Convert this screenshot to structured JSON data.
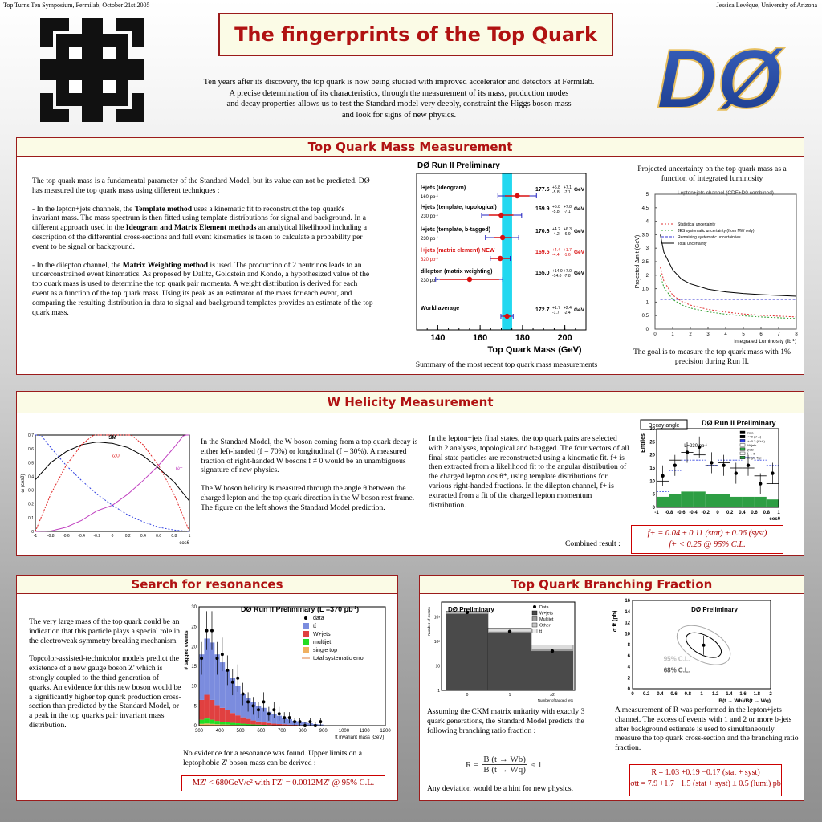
{
  "header": {
    "conference": "Top Turns Ten Symposium, Fermilab, October 21st 2005",
    "author": "Jessica Levêque, University of Arizona",
    "title": "The fingerprints of the Top Quark",
    "intro": [
      "Ten years after its discovery, the top quark is now being studied with improved accelerator and detectors at Fermilab.",
      "A precise determination of its characteristics, through the measurement of its mass, production modes",
      "and decay properties allows us to test the Standard model very deeply, constraint the Higgs boson mass",
      "and look for signs of new physics."
    ],
    "left_logo": "fermilab-logo",
    "right_logo": "d0-logo",
    "right_logo_text": "DØ"
  },
  "mass": {
    "title": "Top Quark Mass Measurement",
    "intro": "The top quark mass is a fundamental parameter of the Standard Model, but its value can not be predicted.  DØ has measured the top quark mass using different techniques :",
    "p2_a": "- In the lepton+jets channels, the ",
    "p2_b1": "Template method",
    "p2_c": " uses a kinematic fit to reconstruct the top quark's invariant mass. The mass spectrum is then fitted using template distributions for signal and background. In a different approach used in the ",
    "p2_b2": "Ideogram and Matrix Element methods",
    "p2_d": " an analytical likelihood including a description of the differential cross-sections and full event kinematics is taken to calculate a probability per event to be signal or background.",
    "p3_a": "- In the dilepton channel, the ",
    "p3_b": "Matrix Weighting method",
    "p3_c": " is used. The production of 2 neutrinos leads to an underconstrained event kinematics. As proposed by Dalitz, Goldstein and Kondo, a hypothesized value of the top quark mass is used to determine the top quark pair momenta. A weight distribution is derived for each event as a function of the top quark mass. Using its peak as an estimator of the mass for each event, and comparing the resulting distribution in data to signal and background templates provides an estimate of the top quark mass.",
    "summary_caption": "Summary of the most recent top quark mass measurements",
    "proj_caption": "Projected uncertainty on the top quark mass as a function of integrated luminosity",
    "goal": "The goal is to measure the top quark mass with 1% precision during Run II."
  },
  "chart_mass": {
    "type": "scatter",
    "title": "DØ Run II Preliminary",
    "xlabel": "Top Quark Mass (GeV)",
    "xlim": [
      130,
      210
    ],
    "ticks": [
      "140",
      "160",
      "180",
      "200"
    ],
    "band": [
      170.3,
      175.1
    ],
    "entries": [
      {
        "label": "l+jets (ideogram)",
        "lumi": "160 pb",
        "val": "177.5",
        "stat": "+5.8 -5.8",
        "syst": "+7.1 -7.1",
        "unit": "GeV",
        "x": 177.5,
        "lo": 168.4,
        "hi": 186.6,
        "slo": 171.7,
        "shi": 183.3,
        "color": "#d81010",
        "tcolor": "#000000"
      },
      {
        "label": "l+jets (template, topological)",
        "lumi": "230 pb",
        "val": "169.9",
        "stat": "+5.8 -5.8",
        "syst": "+7.8 -7.1",
        "unit": "GeV",
        "x": 169.9,
        "lo": 160.7,
        "hi": 179.6,
        "slo": 164.1,
        "shi": 175.7,
        "color": "#d81010",
        "tcolor": "#000000"
      },
      {
        "label": "l+jets (template, b-tagged)",
        "lumi": "230 pb",
        "val": "170.6",
        "stat": "+4.2 -4.2",
        "syst": "+6.3 -6.9",
        "unit": "GeV",
        "x": 170.6,
        "lo": 162.5,
        "hi": 178.2,
        "slo": 166.4,
        "shi": 174.8,
        "color": "#d81010",
        "tcolor": "#000000"
      },
      {
        "label": "l+jets (matrix element) NEW",
        "lumi": "320 pb",
        "val": "169.5",
        "stat": "+4.4 -4.4",
        "syst": "+1.7 -1.6",
        "unit": "GeV",
        "x": 169.5,
        "lo": 164.8,
        "hi": 174.2,
        "slo": 165.1,
        "shi": 173.9,
        "color": "#d81010",
        "tcolor": "#d81010"
      },
      {
        "label": "dilepton (matrix weighting)",
        "lumi": "230 pb",
        "val": "155.0",
        "stat": "+14.0 -14.0",
        "syst": "+7.0 -7.8",
        "unit": "GeV",
        "x": 155.0,
        "lo": 139.0,
        "hi": 170.7,
        "slo": 141.0,
        "shi": 169.0,
        "color": "#d81010",
        "tcolor": "#000000"
      },
      {
        "label": "World average",
        "lumi": "",
        "val": "172.7",
        "stat": "+1.7 -1.7",
        "syst": "+2.4 -2.4",
        "unit": "GeV",
        "x": 172.7,
        "lo": 169.8,
        "hi": 175.6,
        "slo": 171.0,
        "shi": 174.4,
        "color": "#d81010",
        "tcolor": "#000000"
      }
    ]
  },
  "chart_proj": {
    "type": "line",
    "title": "Lepton+jets channel (CDF+D0 combined)",
    "xlabel": "Integrated Luminosity (fb",
    "ylabel": "Projected Δm t (GeV)",
    "xlim": [
      0,
      8
    ],
    "ylim": [
      0,
      5
    ],
    "xticks": [
      "0",
      "1",
      "2",
      "3",
      "4",
      "5",
      "6",
      "7",
      "8"
    ],
    "yticks": [
      "0",
      "0.5",
      "1",
      "1.5",
      "2",
      "2.5",
      "3",
      "3.5",
      "4",
      "4.5",
      "5"
    ],
    "legend": [
      "Statistical uncertainty",
      "JES systematic uncertainty (from MW only)",
      "Remaining systematic uncertainties",
      "Total uncertainty"
    ],
    "x": [
      0.3,
      0.5,
      1,
      1.5,
      2,
      3,
      4,
      5,
      6,
      7,
      8
    ],
    "series": [
      {
        "name": "Statistical uncertainty",
        "color": "#e03030",
        "dash": "2,2",
        "values": [
          2.3,
          1.78,
          1.26,
          1.03,
          0.89,
          0.73,
          0.63,
          0.56,
          0.51,
          0.48,
          0.45
        ]
      },
      {
        "name": "JES systematic uncertainty (from MW only)",
        "color": "#30a030",
        "dash": "2,2",
        "values": [
          2.0,
          1.55,
          1.1,
          0.9,
          0.78,
          0.64,
          0.55,
          0.49,
          0.45,
          0.42,
          0.39
        ]
      },
      {
        "name": "Remaining systematic uncertainties",
        "color": "#3030d0",
        "dash": "3,2",
        "values": [
          1.1,
          1.1,
          1.1,
          1.1,
          1.1,
          1.1,
          1.1,
          1.1,
          1.1,
          1.1,
          1.1
        ]
      },
      {
        "name": "Total uncertainty",
        "color": "#000000",
        "dash": "",
        "values": [
          3.5,
          2.85,
          2.2,
          1.85,
          1.68,
          1.48,
          1.38,
          1.32,
          1.28,
          1.25,
          1.22
        ]
      }
    ]
  },
  "whel": {
    "title": "W Helicity Measurement",
    "text1_a": "In the Standard Model, the W boson coming from a top quark decay is either left-handed (f",
    "text1_b": " = 70%) or longitudinal (f",
    "text1_c": " = 30%). A measured fraction of right-handed W bosons f",
    "text1_d": " ≠ 0 would be an unambiguous signature of new physics.",
    "text2": " The W boson helicity is measured through the angle θ between the charged lepton and the top quark direction in the W boson rest frame.  The figure on the left shows the Standard Model prediction.",
    "text3": "In the lepton+jets final states, the top quark pairs are selected with 2 analyses, topological and b-tagged. The four vectors of all final state particles are reconstructed using a kinematic fit. f+ is then extracted from a likelihood fit to the angular distribution of the charged lepton cos θ*, using template distributions for various right-handed fractions. In the dilepton channel, f+ is extracted from a fit of the charged lepton momentum distribution.",
    "combined": "Combined result :",
    "res1": "f+ = 0.04 ± 0.11 (stat) ± 0.06 (syst)",
    "res2": "f+ < 0.25  @ 95% C.L."
  },
  "chart_whel_sm": {
    "type": "line",
    "ylabel": "ω (cosθ)",
    "xlabel": "cosθ",
    "xlim": [
      -1,
      1
    ],
    "ylim": [
      0,
      0.7
    ],
    "xticks": [
      "-1",
      "-0.8",
      "-0.6",
      "-0.4",
      "-0.2",
      "0",
      "0.2",
      "0.4",
      "0.6",
      "0.8",
      "1"
    ],
    "yticks": [
      "0",
      "0.1",
      "0.2",
      "0.3",
      "0.4",
      "0.5",
      "0.6",
      "0.7"
    ],
    "labels": [
      "SM",
      "ω0",
      "ω+"
    ],
    "x": [
      -1,
      -0.8,
      -0.6,
      -0.4,
      -0.2,
      0,
      0.2,
      0.4,
      0.6,
      0.8,
      1
    ],
    "series": [
      {
        "name": "SM",
        "color": "#000000",
        "values": [
          0.375,
          0.5,
          0.58,
          0.63,
          0.65,
          0.64,
          0.61,
          0.55,
          0.46,
          0.36,
          0.22
        ]
      },
      {
        "name": "ω0",
        "color": "#e02020",
        "values": [
          0.0,
          0.27,
          0.48,
          0.63,
          0.72,
          0.75,
          0.72,
          0.63,
          0.48,
          0.27,
          0.0
        ]
      },
      {
        "name": "ω+",
        "color": "#c040c0",
        "values": [
          0.0,
          0.003,
          0.03,
          0.08,
          0.15,
          0.19,
          0.27,
          0.37,
          0.48,
          0.61,
          0.75
        ]
      },
      {
        "name": "ω-",
        "color": "#3040e0",
        "values": [
          0.75,
          0.61,
          0.48,
          0.37,
          0.27,
          0.19,
          0.12,
          0.07,
          0.03,
          0.01,
          0.0
        ]
      }
    ]
  },
  "chart_whel_fit": {
    "type": "bar",
    "title": "DØ Run II Preliminary",
    "tag": "Decay angle",
    "lumi": "L=230 pb",
    "ylabel": "Entries",
    "xlabel": "cosθ",
    "xlim": [
      -1,
      1
    ],
    "ylim": [
      0,
      30
    ],
    "xticks": [
      "-1",
      "-0.8",
      "-0.6",
      "-0.4",
      "-0.2",
      "0",
      "0.2",
      "0.4",
      "0.6",
      "0.8",
      "1"
    ],
    "yticks": [
      "0",
      "5",
      "10",
      "15",
      "20",
      "25",
      "30"
    ],
    "legend": [
      "Data",
      "f+=0 (V-A)",
      "f+=0.3 (V+A)",
      "W+jets",
      "QCD",
      "tt̄ → ll",
      "Single Top"
    ],
    "bins": [
      -1,
      -0.8,
      -0.6,
      -0.4,
      -0.2,
      0,
      0.2,
      0.4,
      0.6,
      0.8,
      1
    ],
    "bkg": [
      4,
      5,
      6,
      6,
      5,
      5,
      4,
      4,
      4,
      3
    ],
    "total": [
      10,
      18,
      21,
      20,
      16,
      17,
      15,
      15,
      12,
      9
    ],
    "alt": [
      6,
      14,
      18,
      18,
      16,
      18,
      18,
      19,
      18,
      16
    ],
    "data": [
      12,
      16,
      21,
      23,
      17,
      16,
      13,
      16,
      9,
      13
    ]
  },
  "res": {
    "title": "Search for resonances",
    "p1": "The very large mass of the top quark could be an indication that this particle plays a special role in the electroweak symmetry breaking mechanism.",
    "p2": "Topcolor-assisted-technicolor models predict the existence of a new gauge boson Z' which is strongly coupled to the third generation of quarks. An evidence for this new boson would be a significantly higher top quark production cross-section than predicted by the Standard Model, or a peak in the top quark's pair invariant mass distribution.",
    "p3": "No evidence for a resonance was found. Upper limits on a leptophobic Z' boson mass can be derived :",
    "formula": "MZ' < 680GeV/c² with ΓZ' = 0.0012MZ' @ 95% C.L."
  },
  "chart_res": {
    "type": "bar",
    "title": "DØ Run II Preliminary (L =370 pb",
    "ylabel": "# tagged events",
    "xlabel": "tt̄ invariant mass [GeV]",
    "xlim": [
      300,
      1200
    ],
    "ylim": [
      0,
      30
    ],
    "xticks": [
      "300",
      "400",
      "500",
      "600",
      "700",
      "800",
      "900",
      "1000",
      "1100",
      "1200"
    ],
    "yticks": [
      "0",
      "5",
      "10",
      "15",
      "20",
      "25",
      "30"
    ],
    "legend": [
      "data",
      "tt̄",
      "W+jets",
      "multijet",
      "single top",
      "total systematic error"
    ],
    "bins": [
      300,
      325,
      350,
      375,
      400,
      425,
      450,
      475,
      500,
      525,
      550,
      575,
      600,
      625,
      650,
      675,
      700,
      725,
      750,
      775,
      800,
      825,
      850,
      875,
      900
    ],
    "tt": [
      18,
      22,
      21,
      18,
      16,
      14,
      12,
      10,
      8,
      7,
      6,
      5,
      4.5,
      3.5,
      3,
      2.5,
      2,
      1.6,
      1.2,
      1,
      0.8,
      0.6,
      0.4,
      0.3
    ],
    "wj": [
      5,
      6,
      5,
      4,
      3.5,
      3,
      2.5,
      2,
      1.6,
      1.3,
      1,
      0.8,
      0.6,
      0.5,
      0.4,
      0.3,
      0.25,
      0.2,
      0.15,
      0.1,
      0.1,
      0.05,
      0.05,
      0.05
    ],
    "mj": [
      1.5,
      1.8,
      1.5,
      1.2,
      1,
      0.9,
      0.7,
      0.6,
      0.5,
      0.4,
      0.3,
      0.25,
      0.2,
      0.15,
      0.1,
      0.1,
      0.1,
      0.05,
      0.05,
      0.05,
      0,
      0,
      0,
      0
    ],
    "data_x": [
      312,
      337,
      362,
      387,
      412,
      437,
      462,
      487,
      512,
      537,
      562,
      587,
      612,
      637,
      662,
      687,
      712,
      737,
      762,
      787,
      812,
      837,
      862,
      887
    ],
    "data_y": [
      17,
      24,
      24,
      17,
      18,
      14,
      11,
      12,
      8,
      6,
      5,
      4,
      6,
      3,
      4,
      3,
      2,
      2,
      1,
      1,
      0,
      1,
      0,
      1
    ]
  },
  "br": {
    "title": "Top Quark Branching Fraction",
    "p1": "Assuming the CKM matrix unitarity with exactly 3 quark generations, the Standard Model predicts the following branching ratio fraction  :",
    "formula": "R = B(t → Wb) / B(t → Wq) ≈ 1",
    "f_num": "B (t → Wb)",
    "f_den": "B (t → Wq)",
    "f_lhs": "R =",
    "f_rhs": "≈ 1",
    "p2": "Any deviation would be a hint for new physics.",
    "p3": "A measurement of R was performed in the lepton+jets channel. The excess of events with 1 and 2 or more b-jets after background estimate is used to simultaneously measure the top quark cross-section and the  branching ratio fraction.",
    "res1": "R = 1.03 +0.19 −0.17 (stat + syst)",
    "res2": "σtt = 7.9 +1.7 −1.5 (stat + syst) ± 0.5 (lumi)  pb"
  },
  "chart_br_hist": {
    "type": "bar",
    "title": "DØ Preliminary",
    "ylabel": "Number of events",
    "xlabel": "Number of tagged jets",
    "categories": [
      "0",
      "1",
      "≥2"
    ],
    "legend": [
      "Data",
      "W+jets",
      "Multijet",
      "Other",
      "tt̄"
    ],
    "yticks": [
      "1",
      "10",
      "10²",
      "10³"
    ],
    "data": [
      1500,
      250,
      40
    ]
  },
  "chart_br_contour": {
    "type": "scatter",
    "title": "DØ Preliminary",
    "ylabel": "σ tt̄ (pb)",
    "xlabel": "B(t → Wb)/B(t → Wq)",
    "xlim": [
      0,
      2
    ],
    "ylim": [
      0,
      16
    ],
    "xticks": [
      "0",
      "0.2",
      "0.4",
      "0.6",
      "0.8",
      "1",
      "1.2",
      "1.4",
      "1.6",
      "1.8",
      "2"
    ],
    "yticks": [
      "0",
      "2",
      "4",
      "6",
      "8",
      "10",
      "12",
      "14",
      "16"
    ],
    "labels": [
      "95% C.L.",
      "68% C.L."
    ],
    "point": [
      1.03,
      7.9
    ]
  }
}
